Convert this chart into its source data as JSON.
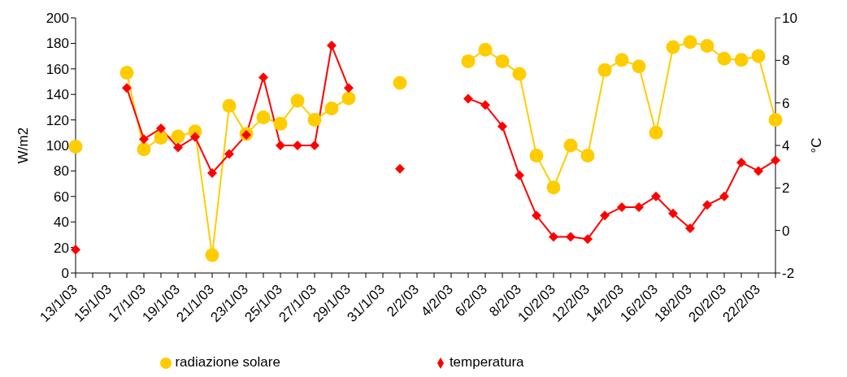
{
  "chart_data": {
    "type": "line",
    "ylabel": "W/m2",
    "y2label": "°C",
    "categories": [
      "13/1/03",
      null,
      "15/1/03",
      null,
      "17/1/03",
      null,
      "19/1/03",
      null,
      "21/1/03",
      null,
      "23/1/03",
      null,
      "25/1/03",
      null,
      "27/1/03",
      null,
      "29/1/03",
      null,
      "31/1/03",
      null,
      "2/2/03",
      null,
      "4/2/03",
      null,
      "6/2/03",
      null,
      "8/2/03",
      null,
      "10/2/03",
      null,
      "12/2/03",
      null,
      "14/2/03",
      null,
      "16/2/03",
      null,
      "18/2/03",
      null,
      "20/2/03",
      null,
      "22/2/03",
      null
    ],
    "series": [
      {
        "name": "radiazione solare",
        "color": "#ffcc00",
        "marker": "circle",
        "values": [
          99,
          null,
          null,
          157,
          97,
          106,
          107,
          111,
          14,
          131,
          109,
          122,
          117,
          135,
          120,
          129,
          137,
          null,
          null,
          149,
          null,
          null,
          null,
          166,
          175,
          166,
          156,
          92,
          67,
          100,
          92,
          159,
          167,
          162,
          110,
          177,
          181,
          178,
          168,
          167,
          170,
          120
        ]
      },
      {
        "name": "temperatura",
        "color": "#ff0000",
        "marker": "diamond",
        "axis": "y2",
        "values": [
          -0.9,
          null,
          null,
          6.7,
          4.3,
          4.8,
          3.9,
          4.4,
          2.7,
          3.6,
          4.5,
          7.2,
          4.0,
          4.0,
          4.0,
          8.7,
          6.7,
          null,
          null,
          2.9,
          null,
          null,
          null,
          6.2,
          5.9,
          4.9,
          2.6,
          0.7,
          -0.3,
          -0.3,
          -0.4,
          0.7,
          1.1,
          1.1,
          1.6,
          0.8,
          0.1,
          1.2,
          1.6,
          3.2,
          2.8,
          3.3
        ]
      }
    ],
    "ylim": [
      0,
      200
    ],
    "yticks": [
      0,
      20,
      40,
      60,
      80,
      100,
      120,
      140,
      160,
      180,
      200
    ],
    "y2lim": [
      -2,
      10
    ],
    "y2ticks": [
      -2,
      0,
      2,
      4,
      6,
      8,
      10
    ],
    "grid": false,
    "legend": "bottom"
  }
}
